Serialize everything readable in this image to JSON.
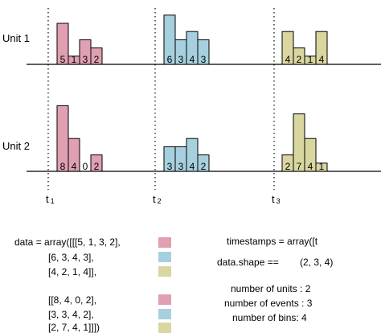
{
  "colors": {
    "pink": "#e0a0b1",
    "blue": "#a7d0df",
    "olive": "#d9d6a0",
    "outline": "#000000",
    "dotted": "#6d6d6d"
  },
  "units": [
    {
      "label": "Unit 1",
      "groups": [
        {
          "color": "pink",
          "values": [
            5,
            1,
            3,
            2
          ],
          "labels": [
            "5",
            "1",
            "3",
            "2"
          ]
        },
        {
          "color": "blue",
          "values": [
            6,
            3,
            4,
            3
          ],
          "labels": [
            "6",
            "3",
            "4",
            "3"
          ]
        },
        {
          "color": "olive",
          "values": [
            4,
            2,
            1,
            4
          ],
          "labels": [
            "4",
            "2",
            "1",
            "4"
          ]
        }
      ]
    },
    {
      "label": "Unit 2",
      "groups": [
        {
          "color": "pink",
          "values": [
            8,
            4,
            0,
            2
          ],
          "labels": [
            "8",
            "4",
            "0",
            "2"
          ]
        },
        {
          "color": "blue",
          "values": [
            3,
            3,
            4,
            2
          ],
          "labels": [
            "3",
            "3",
            "4",
            "2"
          ]
        },
        {
          "color": "olive",
          "values": [
            2,
            7,
            4,
            1
          ],
          "labels": [
            "2",
            "7",
            "4",
            "1"
          ]
        }
      ]
    }
  ],
  "timestamps": [
    {
      "main": "t",
      "sub": "1"
    },
    {
      "main": "t",
      "sub": "2"
    },
    {
      "main": "t",
      "sub": "3"
    }
  ],
  "code": {
    "line1": "data = array([[[5, 1, 3, 2],",
    "line2": "[6, 3, 4, 3],",
    "line3": "[4, 2, 1, 4]],",
    "line4": "[[8, 4, 0, 2],",
    "line5": "[3, 3, 4, 2],",
    "line6": "[2, 7, 4, 1]]])",
    "timestamps_text": "timestamps = array([t",
    "shape_text": "data.shape ==",
    "shape_value": "(2, 3, 4)",
    "n_units": "number of units : 2",
    "n_events": "number of events : 3",
    "n_bins": "number of bins: 4"
  }
}
